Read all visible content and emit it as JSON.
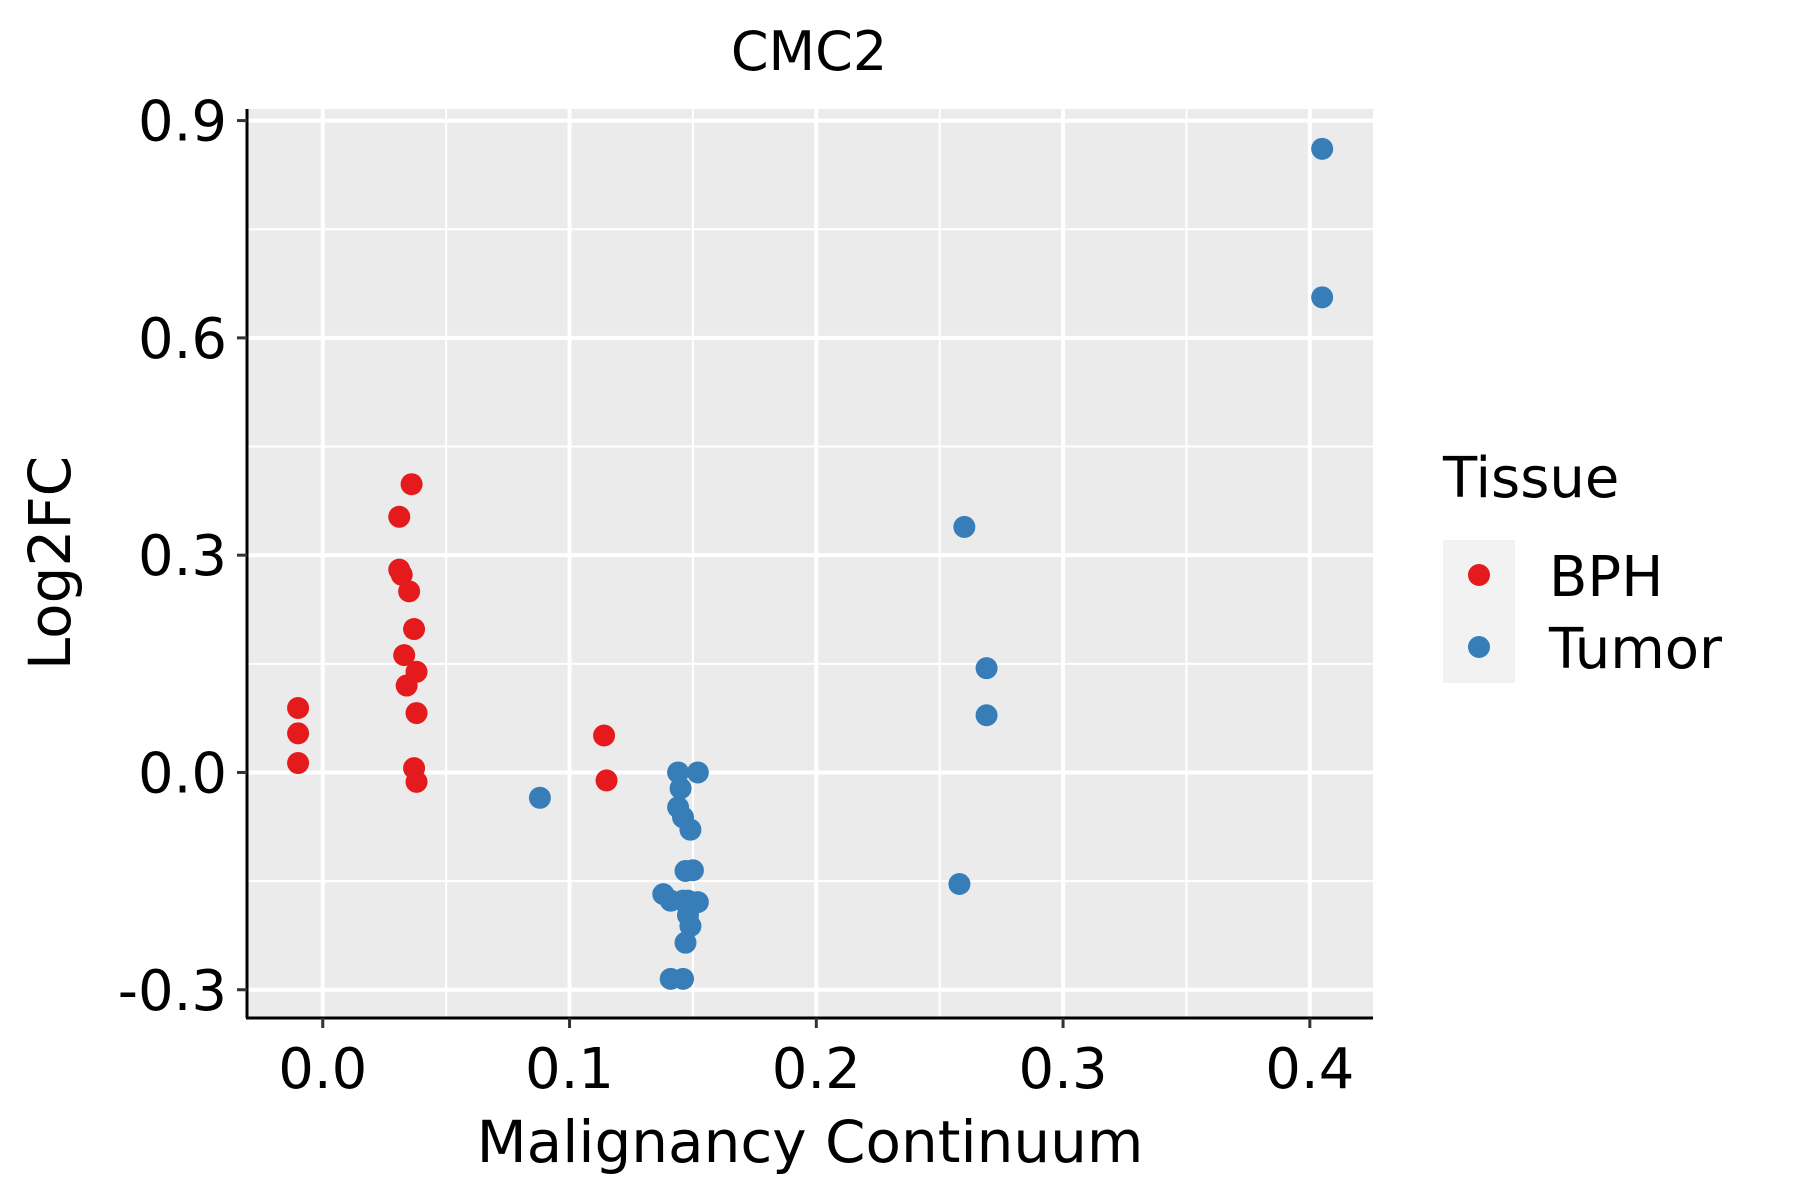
{
  "chart_data": {
    "type": "scatter",
    "title": "CMC2",
    "xlabel": "Malignancy Continuum",
    "ylabel": "Log2FC",
    "xlim": [
      -0.0307,
      0.4256
    ],
    "ylim": [
      -0.339,
      0.916
    ],
    "xticks": [
      0.0,
      0.1,
      0.2,
      0.3,
      0.4
    ],
    "xtick_labels": [
      "0.0",
      "0.1",
      "0.2",
      "0.3",
      "0.4"
    ],
    "yticks": [
      -0.3,
      0.0,
      0.3,
      0.6,
      0.9
    ],
    "ytick_labels": [
      "-0.3",
      "0.0",
      "0.3",
      "0.6",
      "0.9"
    ],
    "grid": true,
    "legend": {
      "title": "Tissue",
      "position": "right"
    },
    "series": [
      {
        "name": "BPH",
        "color": "#E41A1C",
        "points": [
          [
            -0.01,
            0.089
          ],
          [
            -0.01,
            0.054
          ],
          [
            -0.01,
            0.013
          ],
          [
            0.031,
            0.353
          ],
          [
            0.031,
            0.28
          ],
          [
            0.032,
            0.273
          ],
          [
            0.035,
            0.25
          ],
          [
            0.036,
            0.398
          ],
          [
            0.037,
            0.198
          ],
          [
            0.033,
            0.162
          ],
          [
            0.038,
            0.139
          ],
          [
            0.034,
            0.12
          ],
          [
            0.038,
            0.082
          ],
          [
            0.037,
            0.006
          ],
          [
            0.038,
            -0.013
          ],
          [
            0.114,
            0.051
          ],
          [
            0.115,
            -0.011
          ]
        ]
      },
      {
        "name": "Tumor",
        "color": "#377EB8",
        "points": [
          [
            0.088,
            -0.035
          ],
          [
            0.144,
            0.0
          ],
          [
            0.152,
            0.0
          ],
          [
            0.145,
            -0.022
          ],
          [
            0.144,
            -0.048
          ],
          [
            0.146,
            -0.062
          ],
          [
            0.149,
            -0.079
          ],
          [
            0.147,
            -0.136
          ],
          [
            0.15,
            -0.135
          ],
          [
            0.138,
            -0.168
          ],
          [
            0.141,
            -0.177
          ],
          [
            0.146,
            -0.177
          ],
          [
            0.148,
            -0.177
          ],
          [
            0.152,
            -0.179
          ],
          [
            0.148,
            -0.197
          ],
          [
            0.149,
            -0.212
          ],
          [
            0.147,
            -0.235
          ],
          [
            0.141,
            -0.285
          ],
          [
            0.146,
            -0.285
          ],
          [
            0.26,
            0.339
          ],
          [
            0.269,
            0.144
          ],
          [
            0.269,
            0.079
          ],
          [
            0.258,
            -0.154
          ],
          [
            0.405,
            0.861
          ],
          [
            0.405,
            0.656
          ]
        ]
      }
    ]
  }
}
